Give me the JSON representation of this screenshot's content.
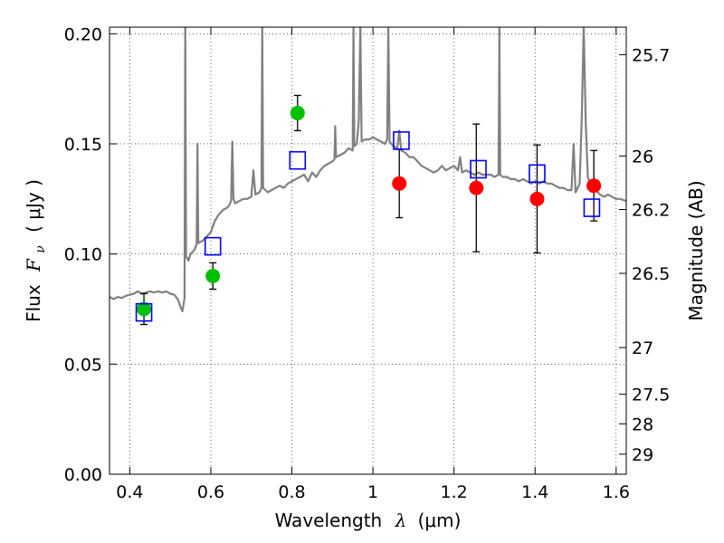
{
  "chart_data": {
    "type": "scatter",
    "title": "",
    "xlabel": {
      "prefix": "Wavelength",
      "symbol": "λ",
      "unit": "(μm)"
    },
    "ylabel": {
      "prefix": "Flux",
      "symbol": "F",
      "subscript": "ν",
      "unit": "( μJy )"
    },
    "ylabel_right": "Magnitude (AB)",
    "xlim": [
      0.35,
      1.625
    ],
    "ylim": [
      0.0,
      0.203
    ],
    "grid": true,
    "x_ticks": [
      {
        "value": 0.4,
        "label": "0.4"
      },
      {
        "value": 0.6,
        "label": "0.6"
      },
      {
        "value": 0.8,
        "label": "0.8"
      },
      {
        "value": 1.0,
        "label": "1"
      },
      {
        "value": 1.2,
        "label": "1.2"
      },
      {
        "value": 1.4,
        "label": "1.4"
      },
      {
        "value": 1.6,
        "label": "1.6"
      }
    ],
    "y_ticks": [
      {
        "value": 0.0,
        "label": "0.00"
      },
      {
        "value": 0.05,
        "label": "0.05"
      },
      {
        "value": 0.1,
        "label": "0.10"
      },
      {
        "value": 0.15,
        "label": "0.15"
      },
      {
        "value": 0.2,
        "label": "0.20"
      }
    ],
    "mag_ticks": [
      {
        "flux": 0.1905,
        "label": "25.7"
      },
      {
        "flux": 0.1445,
        "label": "26"
      },
      {
        "flux": 0.1202,
        "label": "26.2"
      },
      {
        "flux": 0.0912,
        "label": "26.5"
      },
      {
        "flux": 0.0575,
        "label": "27"
      },
      {
        "flux": 0.0363,
        "label": "27.5"
      },
      {
        "flux": 0.0229,
        "label": "28"
      },
      {
        "flux": 0.0091,
        "label": "29"
      }
    ],
    "series": [
      {
        "name": "model spectrum",
        "kind": "line",
        "color": "#808080",
        "points": [
          [
            0.35,
            0.0805
          ],
          [
            0.36,
            0.0795
          ],
          [
            0.37,
            0.0805
          ],
          [
            0.38,
            0.08
          ],
          [
            0.39,
            0.081
          ],
          [
            0.4,
            0.0815
          ],
          [
            0.41,
            0.082
          ],
          [
            0.42,
            0.083
          ],
          [
            0.43,
            0.082
          ],
          [
            0.44,
            0.0825
          ],
          [
            0.45,
            0.083
          ],
          [
            0.46,
            0.0825
          ],
          [
            0.47,
            0.083
          ],
          [
            0.48,
            0.0825
          ],
          [
            0.49,
            0.083
          ],
          [
            0.5,
            0.082
          ],
          [
            0.51,
            0.0815
          ],
          [
            0.52,
            0.079
          ],
          [
            0.525,
            0.076
          ],
          [
            0.53,
            0.074
          ],
          [
            0.535,
            0.08
          ],
          [
            0.537,
            0.203
          ],
          [
            0.539,
            0.099
          ],
          [
            0.545,
            0.097
          ],
          [
            0.55,
            0.1
          ],
          [
            0.56,
            0.102
          ],
          [
            0.565,
            0.1045
          ],
          [
            0.567,
            0.15
          ],
          [
            0.569,
            0.105
          ],
          [
            0.58,
            0.106
          ],
          [
            0.59,
            0.108
          ],
          [
            0.6,
            0.11
          ],
          [
            0.61,
            0.115
          ],
          [
            0.62,
            0.118
          ],
          [
            0.63,
            0.12
          ],
          [
            0.64,
            0.121
          ],
          [
            0.645,
            0.122
          ],
          [
            0.65,
            0.124
          ],
          [
            0.653,
            0.151
          ],
          [
            0.656,
            0.125
          ],
          [
            0.66,
            0.123
          ],
          [
            0.67,
            0.124
          ],
          [
            0.68,
            0.125
          ],
          [
            0.69,
            0.125
          ],
          [
            0.7,
            0.126
          ],
          [
            0.705,
            0.138
          ],
          [
            0.71,
            0.127
          ],
          [
            0.72,
            0.128
          ],
          [
            0.725,
            0.13
          ],
          [
            0.727,
            0.203
          ],
          [
            0.729,
            0.13
          ],
          [
            0.74,
            0.128
          ],
          [
            0.75,
            0.129
          ],
          [
            0.76,
            0.13
          ],
          [
            0.77,
            0.131
          ],
          [
            0.78,
            0.13
          ],
          [
            0.79,
            0.132
          ],
          [
            0.8,
            0.133
          ],
          [
            0.81,
            0.134
          ],
          [
            0.82,
            0.135
          ],
          [
            0.83,
            0.136
          ],
          [
            0.84,
            0.133
          ],
          [
            0.85,
            0.137
          ],
          [
            0.86,
            0.135
          ],
          [
            0.87,
            0.138
          ],
          [
            0.88,
            0.14
          ],
          [
            0.89,
            0.141
          ],
          [
            0.9,
            0.142
          ],
          [
            0.905,
            0.143
          ],
          [
            0.907,
            0.158
          ],
          [
            0.909,
            0.144
          ],
          [
            0.92,
            0.145
          ],
          [
            0.93,
            0.146
          ],
          [
            0.94,
            0.148
          ],
          [
            0.95,
            0.147
          ],
          [
            0.952,
            0.203
          ],
          [
            0.954,
            0.149
          ],
          [
            0.96,
            0.15
          ],
          [
            0.965,
            0.16
          ],
          [
            0.969,
            0.203
          ],
          [
            0.972,
            0.151
          ],
          [
            0.98,
            0.152
          ],
          [
            0.99,
            0.152
          ],
          [
            1.0,
            0.153
          ],
          [
            1.01,
            0.152
          ],
          [
            1.02,
            0.151
          ],
          [
            1.03,
            0.15
          ],
          [
            1.035,
            0.152
          ],
          [
            1.038,
            0.203
          ],
          [
            1.041,
            0.151
          ],
          [
            1.05,
            0.149
          ],
          [
            1.06,
            0.148
          ],
          [
            1.065,
            0.156
          ],
          [
            1.07,
            0.147
          ],
          [
            1.08,
            0.146
          ],
          [
            1.09,
            0.144
          ],
          [
            1.1,
            0.144
          ],
          [
            1.11,
            0.142
          ],
          [
            1.12,
            0.14
          ],
          [
            1.13,
            0.139
          ],
          [
            1.14,
            0.138
          ],
          [
            1.15,
            0.137
          ],
          [
            1.16,
            0.138
          ],
          [
            1.17,
            0.14
          ],
          [
            1.18,
            0.138
          ],
          [
            1.19,
            0.139
          ],
          [
            1.2,
            0.14
          ],
          [
            1.21,
            0.138
          ],
          [
            1.215,
            0.144
          ],
          [
            1.22,
            0.137
          ],
          [
            1.23,
            0.138
          ],
          [
            1.24,
            0.137
          ],
          [
            1.25,
            0.136
          ],
          [
            1.26,
            0.137
          ],
          [
            1.27,
            0.136
          ],
          [
            1.28,
            0.136
          ],
          [
            1.29,
            0.136
          ],
          [
            1.3,
            0.135
          ],
          [
            1.31,
            0.136
          ],
          [
            1.312,
            0.203
          ],
          [
            1.314,
            0.136
          ],
          [
            1.32,
            0.135
          ],
          [
            1.33,
            0.135
          ],
          [
            1.34,
            0.134
          ],
          [
            1.35,
            0.134
          ],
          [
            1.36,
            0.133
          ],
          [
            1.37,
            0.134
          ],
          [
            1.38,
            0.133
          ],
          [
            1.39,
            0.132
          ],
          [
            1.4,
            0.133
          ],
          [
            1.41,
            0.132
          ],
          [
            1.42,
            0.133
          ],
          [
            1.43,
            0.132
          ],
          [
            1.44,
            0.132
          ],
          [
            1.45,
            0.131
          ],
          [
            1.46,
            0.13
          ],
          [
            1.47,
            0.13
          ],
          [
            1.48,
            0.129
          ],
          [
            1.49,
            0.129
          ],
          [
            1.495,
            0.15
          ],
          [
            1.5,
            0.128
          ],
          [
            1.505,
            0.13
          ],
          [
            1.51,
            0.132
          ],
          [
            1.515,
            0.16
          ],
          [
            1.52,
            0.203
          ],
          [
            1.525,
            0.16
          ],
          [
            1.53,
            0.135
          ],
          [
            1.54,
            0.13
          ],
          [
            1.55,
            0.129
          ],
          [
            1.56,
            0.127
          ],
          [
            1.57,
            0.126
          ],
          [
            1.58,
            0.127
          ],
          [
            1.59,
            0.126
          ],
          [
            1.6,
            0.125
          ],
          [
            1.61,
            0.125
          ],
          [
            1.625,
            0.124
          ]
        ]
      },
      {
        "name": "observed (green)",
        "kind": "points",
        "marker": "circle",
        "color": "#00c000",
        "points": [
          {
            "x": 0.435,
            "y": 0.075,
            "err": 0.007
          },
          {
            "x": 0.605,
            "y": 0.09,
            "err": 0.006
          },
          {
            "x": 0.814,
            "y": 0.164,
            "err": 0.008
          }
        ]
      },
      {
        "name": "observed (red)",
        "kind": "points",
        "marker": "circle",
        "color": "#ff0000",
        "points": [
          {
            "x": 1.065,
            "y": 0.132,
            "err": 0.0155
          },
          {
            "x": 1.255,
            "y": 0.13,
            "err": 0.029
          },
          {
            "x": 1.405,
            "y": 0.125,
            "err": 0.0245
          },
          {
            "x": 1.545,
            "y": 0.131,
            "err": 0.016
          }
        ]
      },
      {
        "name": "model photometry",
        "kind": "points",
        "marker": "open-square",
        "color": "#0000ff",
        "points": [
          {
            "x": 0.435,
            "y": 0.0735
          },
          {
            "x": 0.605,
            "y": 0.1035
          },
          {
            "x": 0.814,
            "y": 0.1425
          },
          {
            "x": 1.07,
            "y": 0.1515
          },
          {
            "x": 1.26,
            "y": 0.1385
          },
          {
            "x": 1.405,
            "y": 0.1365
          },
          {
            "x": 1.54,
            "y": 0.121
          }
        ]
      }
    ]
  }
}
